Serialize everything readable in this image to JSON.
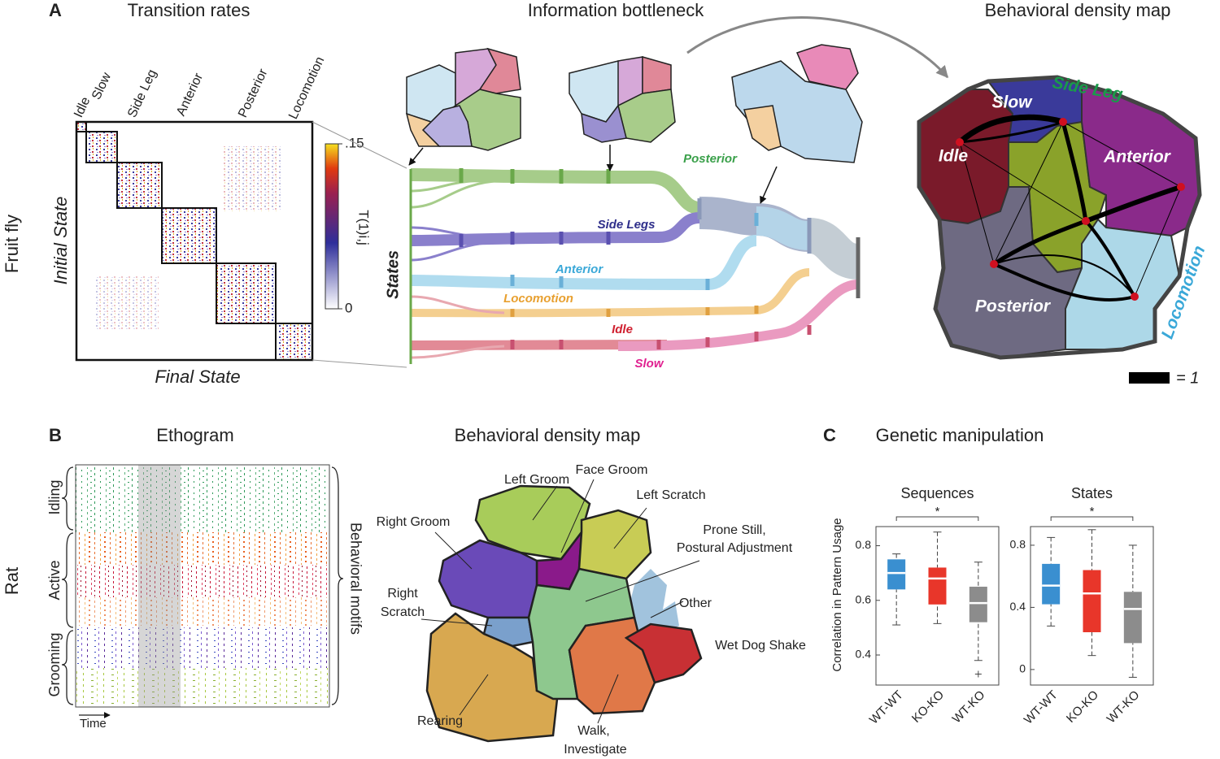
{
  "panel_a": {
    "label": "A",
    "row_label": "Fruit fly",
    "transition_rates": {
      "title": "Transition rates",
      "groups": [
        "Idle",
        "Slow",
        "Side Leg",
        "Anterior",
        "Posterior",
        "Locomotion"
      ],
      "y_label": "Initial State",
      "x_label": "Final State",
      "colorbar": {
        "label": "T(1)i,j",
        "lim": [
          0,
          0.15
        ],
        "ticks": [
          {
            "value": 0.15,
            "label": ".15"
          },
          0
        ]
      }
    },
    "bottleneck": {
      "title": "Information bottleneck",
      "y_label": "States",
      "flows": [
        "Posterior",
        "Side Legs",
        "Anterior",
        "Locomotion",
        "Idle",
        "Slow"
      ]
    },
    "density_map": {
      "title": "Behavioral density map",
      "regions": [
        "Slow",
        "Side Leg",
        "Idle",
        "Anterior",
        "Posterior",
        "Locomotion"
      ],
      "scale_label": "= 1"
    }
  },
  "panel_b": {
    "label": "B",
    "row_label": "Rat",
    "ethogram": {
      "title": "Ethogram",
      "groups": [
        "Idling",
        "Active",
        "Grooming"
      ],
      "motif_label": "Behavioral motifs",
      "x_label": "Time"
    },
    "density_map": {
      "title": "Behavioral density map",
      "regions": [
        "Left Groom",
        "Face Groom",
        "Left Scratch",
        "Right Groom",
        [
          "Right",
          "Scratch"
        ],
        [
          "Prone Still,",
          "Postural Adjustment"
        ],
        "Other",
        "Wet Dog Shake",
        "Rearing",
        [
          "Walk,",
          "Investigate"
        ]
      ]
    }
  },
  "panel_c": {
    "label": "C",
    "title": "Genetic manipulation",
    "y_label": "Correlation in Pattern Usage"
  },
  "chart_data": [
    {
      "type": "box",
      "title": "Sequences",
      "categories": [
        "WT-WT",
        "KO-KO",
        "WT-KO"
      ],
      "colors": [
        "#3a8fd0",
        "#e8362a",
        "#8c8c8c"
      ],
      "boxes": [
        {
          "whisker_low": 0.51,
          "q1": 0.64,
          "median": 0.7,
          "q3": 0.75,
          "whisker_high": 0.77,
          "outliers": []
        },
        {
          "whisker_low": 0.515,
          "q1": 0.585,
          "median": 0.68,
          "q3": 0.72,
          "whisker_high": 0.85,
          "outliers": []
        },
        {
          "whisker_low": 0.38,
          "q1": 0.52,
          "median": 0.59,
          "q3": 0.65,
          "whisker_high": 0.74,
          "outliers": [
            0.33
          ]
        }
      ],
      "significance": "*",
      "ylim": [
        0.29,
        0.87
      ],
      "yticks": [
        0.4,
        0.6,
        0.8
      ]
    },
    {
      "type": "box",
      "title": "States",
      "categories": [
        "WT-WT",
        "KO-KO",
        "WT-KO"
      ],
      "colors": [
        "#3a8fd0",
        "#e8362a",
        "#8c8c8c"
      ],
      "boxes": [
        {
          "whisker_low": 0.28,
          "q1": 0.42,
          "median": 0.54,
          "q3": 0.68,
          "whisker_high": 0.85,
          "outliers": []
        },
        {
          "whisker_low": 0.09,
          "q1": 0.24,
          "median": 0.49,
          "q3": 0.64,
          "whisker_high": 0.9,
          "outliers": []
        },
        {
          "whisker_low": -0.05,
          "q1": 0.17,
          "median": 0.39,
          "q3": 0.5,
          "whisker_high": 0.8,
          "outliers": []
        }
      ],
      "significance": "*",
      "ylim": [
        -0.1,
        0.92
      ],
      "yticks": [
        0,
        0.4,
        0.8
      ]
    }
  ]
}
